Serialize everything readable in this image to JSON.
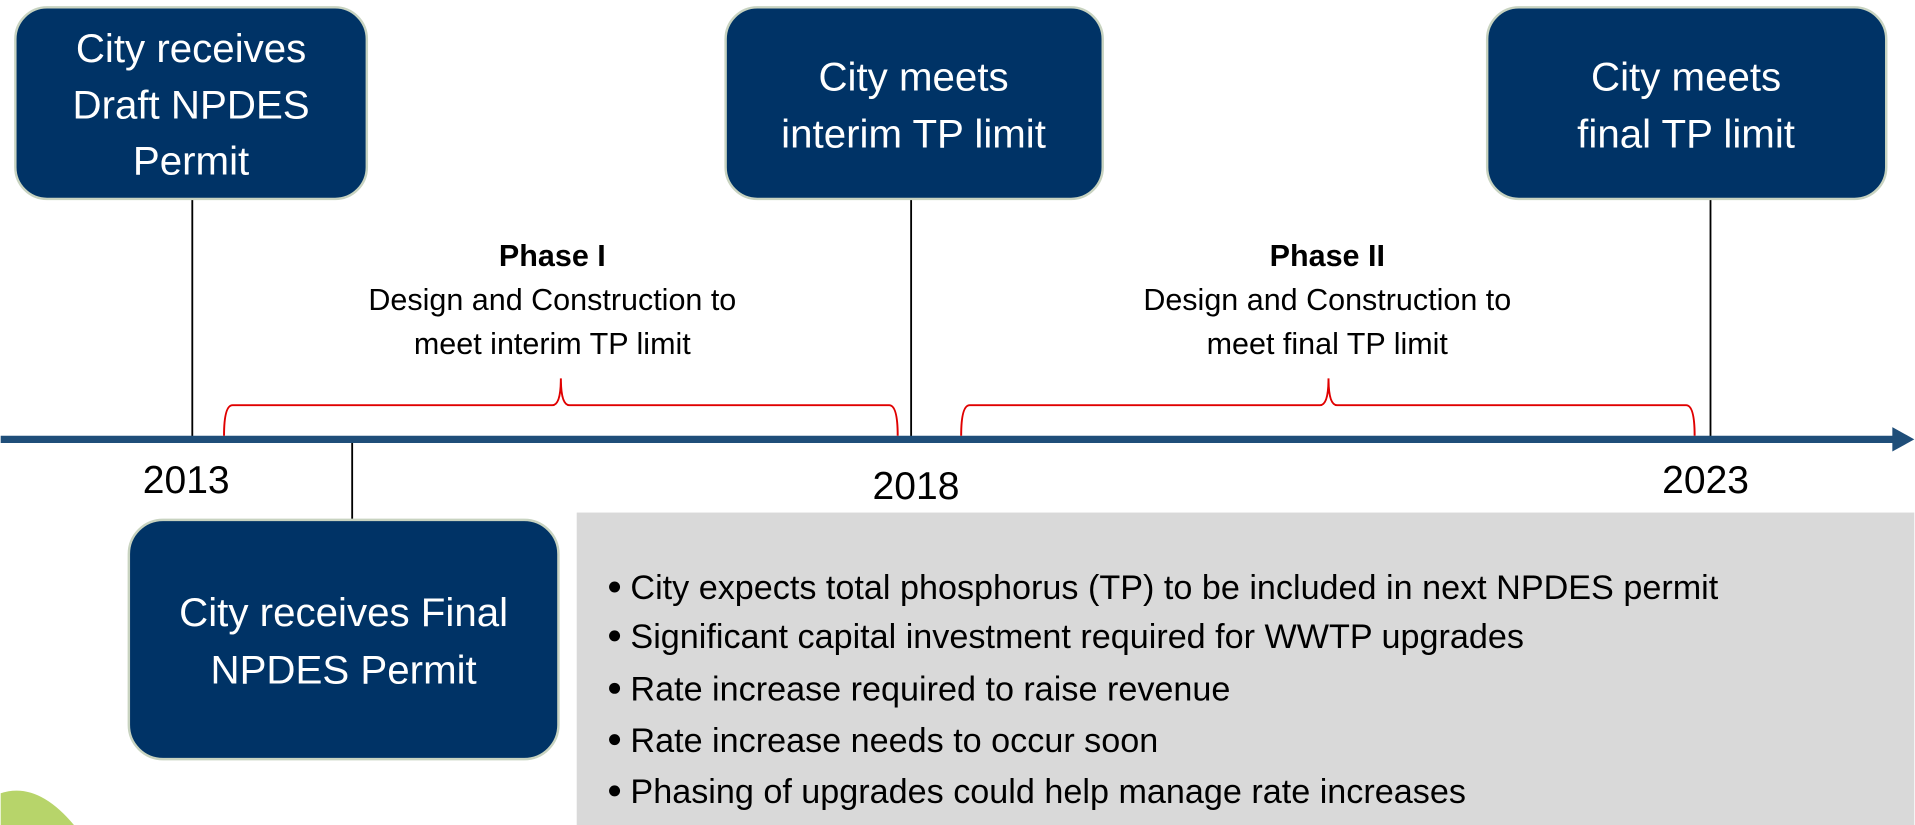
{
  "events": [
    {
      "lines": [
        "City receives",
        "Draft NPDES",
        "Permit"
      ]
    },
    {
      "lines": [
        "City meets",
        "interim TP limit"
      ]
    },
    {
      "lines": [
        "City meets",
        "final TP limit"
      ]
    },
    {
      "lines": [
        "City receives Final",
        "NPDES Permit"
      ]
    }
  ],
  "years": [
    "2013",
    "2018",
    "2023"
  ],
  "phases": [
    {
      "title": "Phase I",
      "lines": [
        "Design and Construction to",
        "meet interim TP limit"
      ]
    },
    {
      "title": "Phase II",
      "lines": [
        "Design and Construction to",
        "meet final TP limit"
      ]
    }
  ],
  "bullets": [
    "City expects total phosphorus (TP) to be included in next NPDES permit",
    "Significant capital investment required for WWTP upgrades",
    "Rate increase required to raise revenue",
    "Rate increase needs to occur soon",
    "Phasing of upgrades could help manage rate increases"
  ]
}
